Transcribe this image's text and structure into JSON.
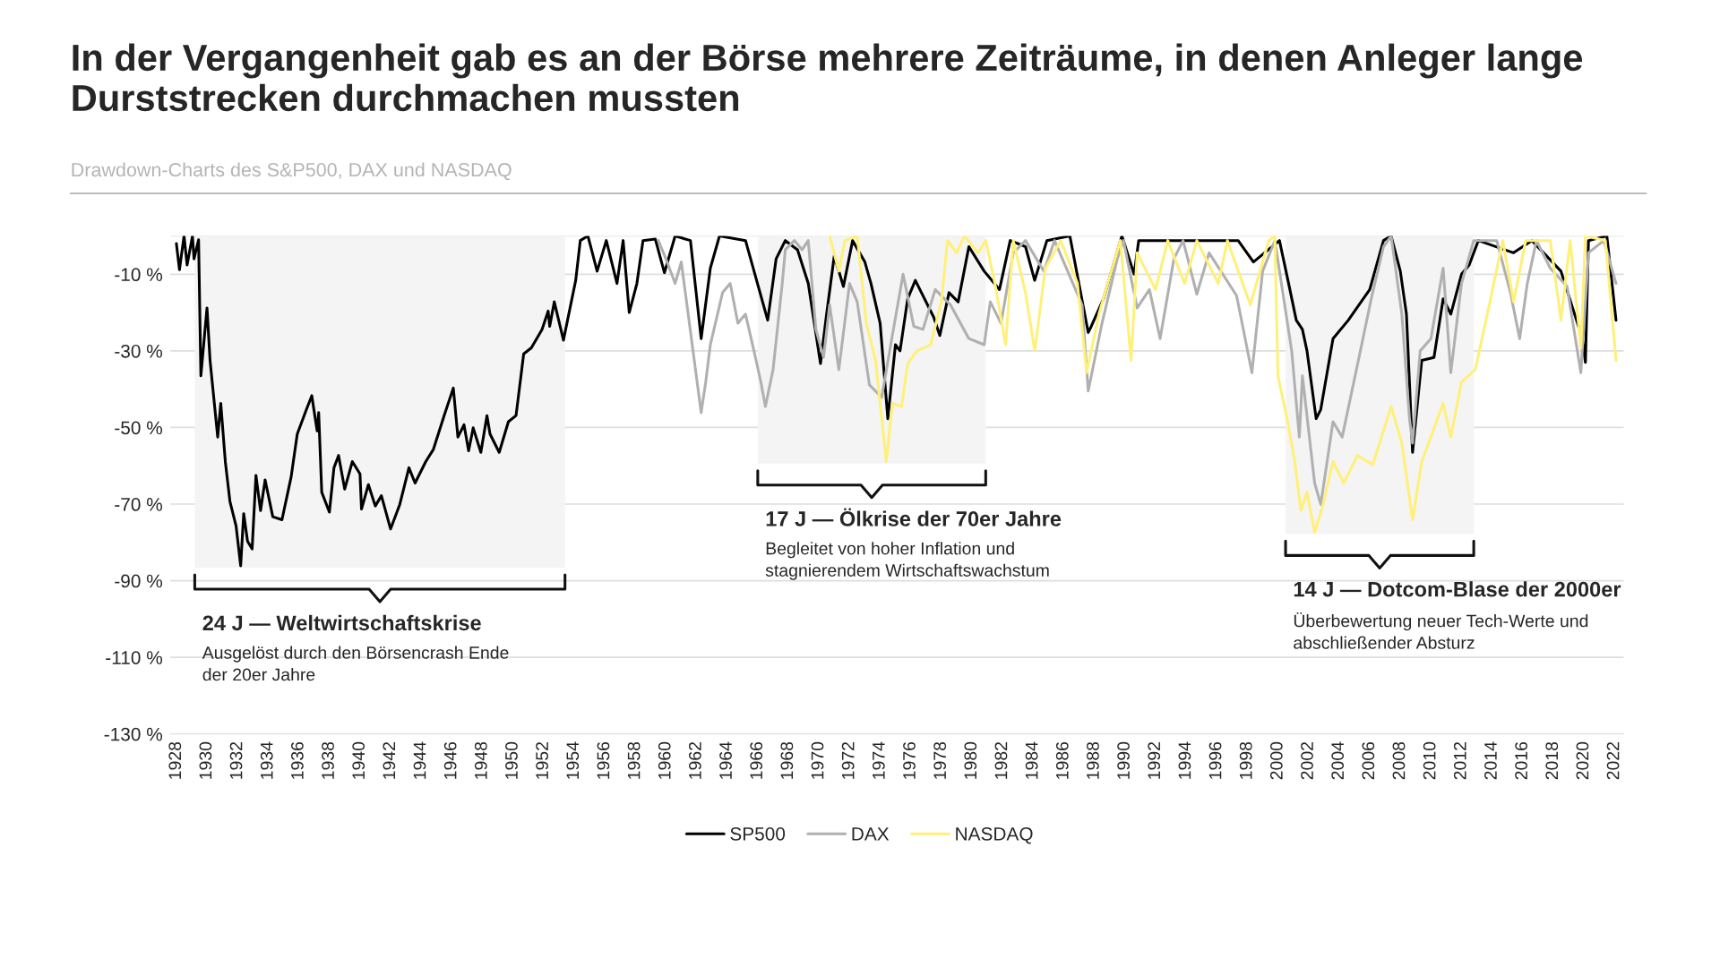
{
  "chart_data": {
    "type": "line",
    "title": "In der Vergangenheit gab es an der Börse mehrere Zeiträume, in denen Anleger lange Durststrecken durchmachen mussten",
    "subtitle": "Drawdown-Charts des S&P500, DAX und NASDAQ",
    "xlim": [
      1927.6,
      2022.6
    ],
    "xticks": [
      1928,
      1930,
      1932,
      1934,
      1936,
      1938,
      1940,
      1942,
      1944,
      1946,
      1948,
      1950,
      1952,
      1954,
      1956,
      1958,
      1960,
      1962,
      1964,
      1966,
      1968,
      1970,
      1972,
      1974,
      1976,
      1978,
      1980,
      1982,
      1984,
      1986,
      1988,
      1990,
      1992,
      1994,
      1996,
      1998,
      2000,
      2002,
      2004,
      2006,
      2008,
      2010,
      2012,
      2014,
      2016,
      2018,
      2020,
      2022
    ],
    "ylim": [
      -130,
      0
    ],
    "yticks": [
      {
        "value": 0,
        "label": null
      },
      {
        "value": -10,
        "label": "-10 %"
      },
      {
        "value": -30,
        "label": "-30 %"
      },
      {
        "value": -50,
        "label": "-50 %"
      },
      {
        "value": -70,
        "label": "-70 %"
      },
      {
        "value": -90,
        "label": "-90 %"
      },
      {
        "value": -110,
        "label": "-110 %"
      },
      {
        "value": -130,
        "label": "-130 %"
      }
    ],
    "grid": "y",
    "legend": "bottom",
    "series": [
      {
        "name": "SP500",
        "color": "#000000",
        "x": [
          1928.0,
          1928.2,
          1928.5,
          1928.7,
          1929.05,
          1929.15,
          1929.45,
          1929.6,
          1930.0,
          1930.2,
          1930.7,
          1930.9,
          1931.2,
          1931.5,
          1931.9,
          1932.2,
          1932.4,
          1932.65,
          1932.95,
          1933.2,
          1933.5,
          1933.8,
          1934.3,
          1934.9,
          1935.5,
          1935.9,
          1936.5,
          1936.85,
          1937.2,
          1937.3,
          1937.5,
          1938.0,
          1938.3,
          1938.6,
          1939.0,
          1939.5,
          1940.0,
          1940.1,
          1940.55,
          1941.0,
          1941.4,
          1942.0,
          1942.6,
          1943.2,
          1943.6,
          1944.3,
          1944.8,
          1945.5,
          1946.1,
          1946.4,
          1946.8,
          1947.1,
          1947.4,
          1947.9,
          1948.3,
          1948.5,
          1949.1,
          1949.7,
          1950.2,
          1950.7,
          1951.2,
          1951.9,
          1952.3,
          1952.4,
          1952.7,
          1953.3,
          1954.1,
          1954.4,
          1954.9,
          1955.5,
          1956.1,
          1956.8,
          1957.2,
          1957.6,
          1958.1,
          1958.5,
          1959.3,
          1959.9,
          1960.6,
          1961.6,
          1962.3,
          1962.9,
          1963.5,
          1965.2,
          1966.65,
          1967.2,
          1967.8,
          1968.6,
          1969.3,
          1970.1,
          1970.5,
          1971.0,
          1971.6,
          1972.2,
          1973.0,
          1973.4,
          1974.0,
          1974.5,
          1975.0,
          1975.3,
          1975.8,
          1976.3,
          1976.7,
          1977.5,
          1977.9,
          1978.5,
          1979.1,
          1979.8,
          1980.8,
          1981.8,
          1982.5,
          1983.5,
          1984.1,
          1984.9,
          1986.4,
          1987.6,
          1987.8,
          1988.6,
          1989.8,
          1990.6,
          1990.9,
          1993.7,
          1997.4,
          1998.4,
          2000.1,
          2000.7,
          2001.2,
          2001.6,
          2001.9,
          2002.5,
          2002.8,
          2003.6,
          2004.6,
          2006.0,
          2006.9,
          2007.4,
          2008.0,
          2008.4,
          2008.8,
          2009.4,
          2010.2,
          2010.8,
          2011.3,
          2012.0,
          2012.5,
          2013.1,
          2015.4,
          2016.6,
          2018.5,
          2019.9,
          2020.1,
          2020.3,
          2021.5,
          2022.1
        ],
        "values": [
          -2,
          -8.8,
          0,
          -7.6,
          0,
          -6,
          -1,
          -36.5,
          -18.8,
          -32.5,
          -52.5,
          -43.7,
          -59,
          -69.3,
          -75.7,
          -86.1,
          -72.5,
          -79.7,
          -81.7,
          -62.5,
          -71.7,
          -63.7,
          -73.3,
          -74.1,
          -62.9,
          -51.7,
          -45.3,
          -41.7,
          -50.9,
          -46.1,
          -66.9,
          -72.1,
          -60.5,
          -57.3,
          -66.1,
          -58.9,
          -62.1,
          -71.3,
          -64.9,
          -70.5,
          -67.8,
          -76.5,
          -70.1,
          -60.5,
          -64.5,
          -58.9,
          -55.7,
          -46.9,
          -39.7,
          -52.5,
          -49.3,
          -56.1,
          -50.1,
          -56.5,
          -46.9,
          -51.7,
          -56.5,
          -48.5,
          -46.9,
          -30.8,
          -29.2,
          -24.4,
          -19.6,
          -23.6,
          -17.2,
          -27.2,
          -11.6,
          -1.2,
          0,
          -9.2,
          -1.2,
          -12.4,
          -1.2,
          -20,
          -12.4,
          -1.2,
          -0.8,
          -9.6,
          0,
          -1.2,
          -26.8,
          -8.4,
          0,
          -1.2,
          -22,
          -6,
          -1.2,
          -3.6,
          -12.4,
          -33.3,
          -20.4,
          -5.2,
          -13.2,
          -1.2,
          -6.8,
          -12.4,
          -22.8,
          -47.7,
          -28.4,
          -30,
          -16.4,
          -11.6,
          -14.8,
          -21.2,
          -26,
          -14.8,
          -17.2,
          -2.8,
          -9.2,
          -14,
          -1.2,
          -2.8,
          -11.6,
          -1.2,
          0,
          -25.2,
          -23.6,
          -16.4,
          0,
          -10,
          -1.2,
          -1.2,
          -1.2,
          -6.8,
          -1.2,
          -12.4,
          -22,
          -24.4,
          -30,
          -47.7,
          -45.3,
          -26.8,
          -22,
          -14,
          -1.2,
          0,
          -9.2,
          -20.4,
          -56.5,
          -32.5,
          -31.7,
          -16.4,
          -20.4,
          -10,
          -7.6,
          -1.2,
          -4.4,
          -1.2,
          -9.2,
          -26.8,
          -33,
          -1.2,
          0,
          -22
        ]
      },
      {
        "name": "DAX",
        "color": "#b0b0b0",
        "x": [
          1959.5,
          1960.0,
          1960.6,
          1961.0,
          1961.4,
          1961.9,
          1962.3,
          1962.6,
          1962.9,
          1963.7,
          1964.2,
          1964.7,
          1965.2,
          1965.8,
          1966.2,
          1966.5,
          1967.0,
          1967.6,
          1967.8,
          1968.4,
          1968.9,
          1969.3,
          1969.8,
          1970.3,
          1970.7,
          1971.3,
          1972.0,
          1972.5,
          1973.3,
          1974.1,
          1974.9,
          1975.5,
          1976.2,
          1976.8,
          1977.6,
          1978.6,
          1979.8,
          1980.8,
          1981.2,
          1981.9,
          1982.7,
          1983.5,
          1984.7,
          1985.4,
          1986.6,
          1987.2,
          1987.6,
          1988.5,
          1989.5,
          1989.9,
          1990.8,
          1991.6,
          1992.3,
          1993.2,
          1993.8,
          1994.7,
          1995.5,
          1997.3,
          1998.3,
          1999.0,
          1999.8,
          2000.9,
          2001.4,
          2001.6,
          2002.4,
          2002.8,
          2003.6,
          2004.2,
          2005.3,
          2006.1,
          2006.9,
          2007.4,
          2008.1,
          2008.6,
          2008.8,
          2009.3,
          2010.0,
          2010.8,
          2011.3,
          2012.0,
          2012.8,
          2014.3,
          2015.2,
          2015.8,
          2016.3,
          2016.9,
          2017.8,
          2018.9,
          2019.8,
          2020.3,
          2021.3,
          2022.1
        ],
        "values": [
          -1.2,
          -6,
          -12.4,
          -6.8,
          -18.8,
          -34,
          -46.1,
          -38.1,
          -28.4,
          -14.8,
          -12.4,
          -22.8,
          -20.4,
          -30.8,
          -38.1,
          -44.5,
          -34.9,
          -12.4,
          -3.6,
          -1.2,
          -3.6,
          -1.2,
          -24.4,
          -31.7,
          -18,
          -34.9,
          -12.4,
          -17.2,
          -38.9,
          -42.1,
          -23.6,
          -10,
          -23.6,
          -24.4,
          -14,
          -18,
          -26.8,
          -28.4,
          -17.2,
          -22.8,
          -4.4,
          -1.2,
          -9.2,
          -1.2,
          -12.4,
          -18,
          -40.5,
          -22.8,
          -6,
          -1.2,
          -18.8,
          -14,
          -26.8,
          -6,
          -1.2,
          -15.2,
          -4.4,
          -15.6,
          -35.7,
          -9.2,
          -1.2,
          -30,
          -52.5,
          -36.5,
          -64.5,
          -70.1,
          -48.5,
          -52.5,
          -31.7,
          -16.4,
          -2.8,
          0,
          -20.4,
          -47.7,
          -54.1,
          -30,
          -26.8,
          -8.4,
          -35.7,
          -12.4,
          -1.2,
          -1.2,
          -14.8,
          -26.8,
          -12.4,
          -1.2,
          -8.4,
          -13.2,
          -35.7,
          -4.4,
          -1.2,
          -12.4
        ]
      },
      {
        "name": "NASDAQ",
        "color": "#fff07a",
        "x": [
          1970.7,
          1971.3,
          1971.7,
          1972.5,
          1973.1,
          1973.7,
          1974.4,
          1974.8,
          1975.4,
          1975.8,
          1976.4,
          1977.3,
          1978.0,
          1978.4,
          1979.0,
          1979.5,
          1980.4,
          1980.9,
          1981.5,
          1982.2,
          1982.7,
          1983.5,
          1984.1,
          1984.8,
          1985.8,
          1986.9,
          1987.5,
          1988.3,
          1989.7,
          1990.4,
          1990.8,
          1992.0,
          1992.8,
          1993.9,
          1994.7,
          1996.1,
          1996.7,
          1998.2,
          1999.4,
          1999.8,
          2000.0,
          2000.6,
          2001.1,
          2001.5,
          2001.9,
          2002.4,
          2002.9,
          2003.6,
          2004.3,
          2005.2,
          2006.2,
          2007.4,
          2008.1,
          2008.8,
          2009.4,
          2010.8,
          2011.3,
          2012.0,
          2012.9,
          2013.9,
          2014.7,
          2015.4,
          2016.2,
          2017.8,
          2018.5,
          2019.1,
          2019.8,
          2020.1,
          2021.4,
          2022.1
        ],
        "values": [
          0,
          -9.2,
          -1.2,
          0,
          -22.8,
          -32.5,
          -58.9,
          -43.7,
          -44.5,
          -33.3,
          -30,
          -28.4,
          -17.2,
          -1.2,
          -4.4,
          0,
          -4.4,
          -1.2,
          -12.4,
          -28.4,
          -1.2,
          -14.8,
          -30,
          -8.4,
          -1.2,
          -12.4,
          -35.7,
          -20.4,
          -1.2,
          -32.5,
          -4.4,
          -14,
          -1.2,
          -12.4,
          -1.2,
          -12.4,
          -1.2,
          -18,
          -1.2,
          0,
          -36.5,
          -47.7,
          -58.9,
          -71.7,
          -66.9,
          -77.3,
          -70.9,
          -58.9,
          -64.5,
          -57.3,
          -59.7,
          -44.5,
          -54.1,
          -74.1,
          -58.9,
          -43.7,
          -52.5,
          -38.1,
          -34.9,
          -16.4,
          -1.2,
          -17.2,
          -1.2,
          -1.2,
          -22,
          -1.2,
          -29.2,
          0,
          -1.2,
          -32.5
        ]
      }
    ],
    "bands": [
      {
        "axis": "x",
        "from": 1929.2,
        "to": 1953.4,
        "color": "#f4f4f4",
        "label": "24 J — Weltwirtschaftskrise\nAusgelöst durch den Börsencrash Ende\nder 20er Jahre"
      },
      {
        "axis": "x",
        "from": 1966.0,
        "to": 1980.9,
        "color": "#f4f4f4",
        "label": "17 J — Ölkrise der 70er Jahre\nBegleitet von hoher Inflation und\nstagnierendem Wirtschaftswachstum"
      },
      {
        "axis": "x",
        "from": 2000.5,
        "to": 2012.8,
        "color": "#f4f4f4",
        "label": "14 J — Dotcom-Blase der 2000er\nÜberbewertung neuer Tech-Werte und\nabschließender Absturz"
      }
    ]
  }
}
